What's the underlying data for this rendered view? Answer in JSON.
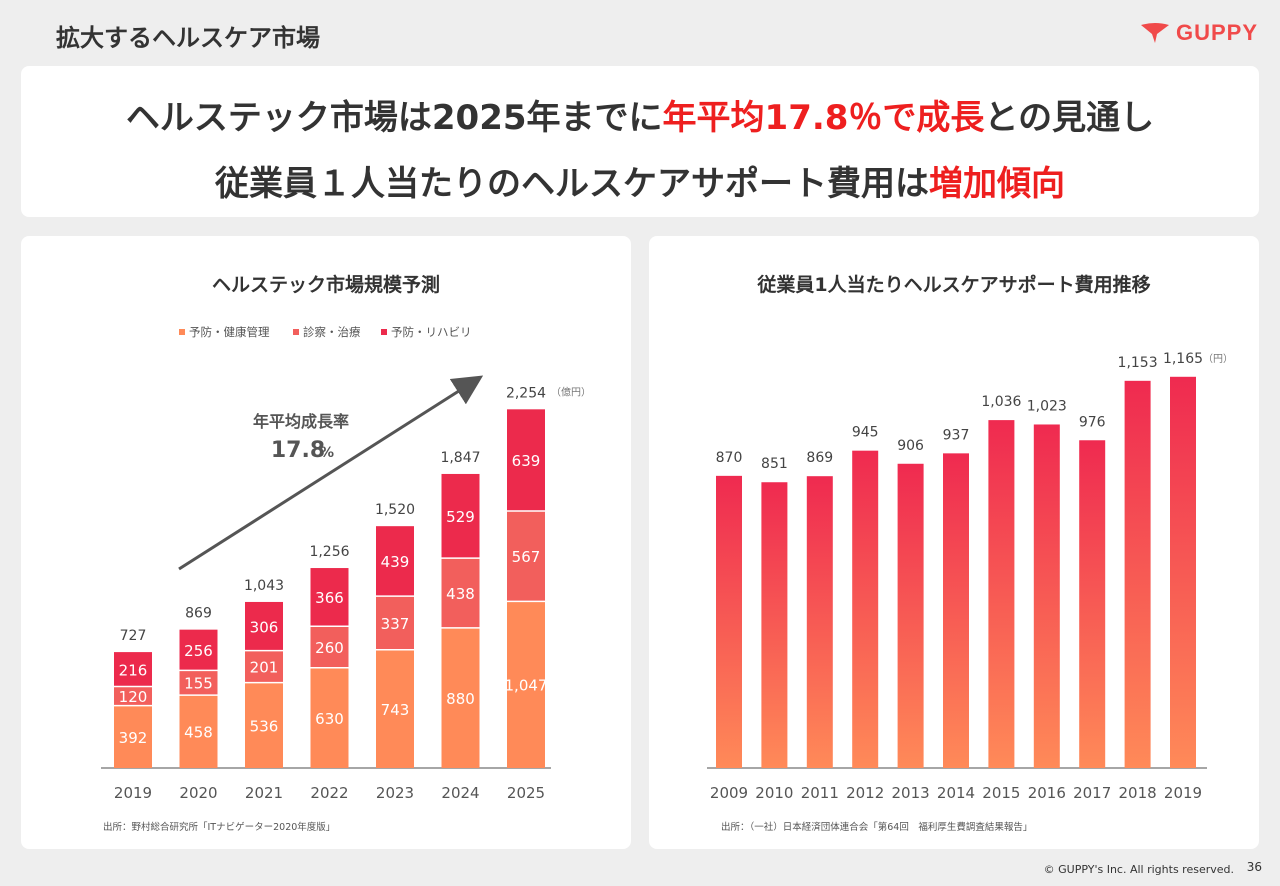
{
  "page": {
    "section_title": "拡大するヘルスケア市場",
    "brand": "GUPPY",
    "copyright": "© GUPPY's Inc. All rights reserved.",
    "page_number": "36"
  },
  "headline": {
    "line1_a": "ヘルステック市場は2025年までに",
    "line1_b": "年平均17.8％で成長",
    "line1_c": "との見通し",
    "line2_a": "従業員１人当たりのヘルスケアサポート費用は",
    "line2_b": "増加傾向"
  },
  "colors": {
    "red_text": "#ee1f1f",
    "seg_prevention": "#ff8a58",
    "seg_treatment": "#f25f5c",
    "seg_rehab": "#ec2a4c",
    "bar_top": "#ef2a50",
    "bar_bottom": "#ff8a58"
  },
  "chart_data": [
    {
      "type": "bar",
      "stacked": true,
      "title": "ヘルステック市場規模予測",
      "unit": "（億円）",
      "categories": [
        "2019",
        "2020",
        "2021",
        "2022",
        "2023",
        "2024",
        "2025"
      ],
      "series": [
        {
          "name": "予防・健康管理",
          "values": [
            392,
            458,
            536,
            630,
            743,
            880,
            1047
          ],
          "labels": [
            "392",
            "458",
            "536",
            "630",
            "743",
            "880",
            "1,047"
          ]
        },
        {
          "name": "診察・治療",
          "values": [
            120,
            155,
            201,
            260,
            337,
            438,
            567
          ],
          "labels": [
            "120",
            "155",
            "201",
            "260",
            "337",
            "438",
            "567"
          ]
        },
        {
          "name": "予防・リハビリ",
          "values": [
            216,
            256,
            306,
            366,
            439,
            529,
            639
          ],
          "labels": [
            "216",
            "256",
            "306",
            "366",
            "439",
            "529",
            "639"
          ]
        }
      ],
      "totals": [
        727,
        869,
        1043,
        1256,
        1520,
        1847,
        2254
      ],
      "total_labels": [
        "727",
        "869",
        "1,043",
        "1,256",
        "1,520",
        "1,847",
        "2,254"
      ],
      "legend": "top-center",
      "annotation": {
        "label": "年平均成長率",
        "value": "17.8",
        "unit": "%"
      },
      "source": "出所：野村総合研究所「ITナビゲーター2020年度版」",
      "grid": false
    },
    {
      "type": "bar",
      "title": "従業員1人当たりヘルスケアサポート費用推移",
      "unit": "（円）",
      "categories": [
        "2009",
        "2010",
        "2011",
        "2012",
        "2013",
        "2014",
        "2015",
        "2016",
        "2017",
        "2018",
        "2019"
      ],
      "values": [
        870,
        851,
        869,
        945,
        906,
        937,
        1036,
        1023,
        976,
        1153,
        1165
      ],
      "value_labels": [
        "870",
        "851",
        "869",
        "945",
        "906",
        "937",
        "1,036",
        "1,023",
        "976",
        "1,153",
        "1,165"
      ],
      "source": "出所：（一社）日本経済団体連合会「第64回　福利厚生費調査結果報告」",
      "grid": false
    }
  ]
}
